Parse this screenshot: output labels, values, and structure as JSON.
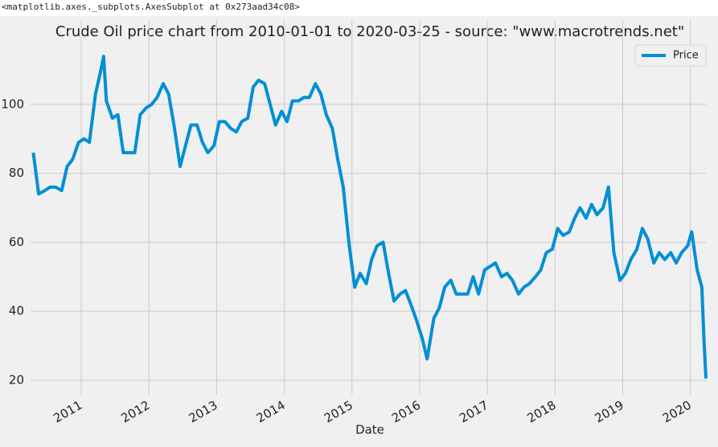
{
  "output_text": "<matplotlib.axes._subplots.AxesSubplot at 0x273aad34c08>",
  "chart_data": {
    "type": "line",
    "title": "Crude Oil price chart from 2010-01-01 to 2020-03-25 - source: \"www.macrotrends.net\"",
    "x_label": "Date",
    "x": [
      2010.29,
      2010.37,
      2010.46,
      2010.54,
      2010.62,
      2010.71,
      2010.79,
      2010.87,
      2010.96,
      2011.04,
      2011.12,
      2011.21,
      2011.29,
      2011.33,
      2011.37,
      2011.46,
      2011.54,
      2011.62,
      2011.71,
      2011.79,
      2011.87,
      2011.96,
      2012.04,
      2012.12,
      2012.21,
      2012.29,
      2012.37,
      2012.46,
      2012.54,
      2012.62,
      2012.71,
      2012.79,
      2012.87,
      2012.96,
      2013.04,
      2013.12,
      2013.21,
      2013.29,
      2013.37,
      2013.46,
      2013.54,
      2013.62,
      2013.71,
      2013.79,
      2013.87,
      2013.96,
      2014.04,
      2014.12,
      2014.21,
      2014.29,
      2014.37,
      2014.46,
      2014.54,
      2014.62,
      2014.71,
      2014.79,
      2014.87,
      2014.96,
      2015.04,
      2015.12,
      2015.21,
      2015.29,
      2015.37,
      2015.46,
      2015.54,
      2015.62,
      2015.71,
      2015.79,
      2015.87,
      2015.96,
      2016.04,
      2016.11,
      2016.21,
      2016.29,
      2016.37,
      2016.46,
      2016.54,
      2016.62,
      2016.71,
      2016.79,
      2016.87,
      2016.96,
      2017.04,
      2017.12,
      2017.21,
      2017.29,
      2017.37,
      2017.46,
      2017.54,
      2017.62,
      2017.71,
      2017.79,
      2017.87,
      2017.96,
      2018.04,
      2018.12,
      2018.21,
      2018.29,
      2018.37,
      2018.46,
      2018.54,
      2018.62,
      2018.71,
      2018.79,
      2018.87,
      2018.96,
      2019.04,
      2019.12,
      2019.21,
      2019.29,
      2019.37,
      2019.46,
      2019.54,
      2019.62,
      2019.71,
      2019.79,
      2019.87,
      2019.96,
      2020.02,
      2020.1,
      2020.17,
      2020.2,
      2020.23
    ],
    "series": [
      {
        "name": "Price",
        "color": "#008fd5",
        "values": [
          86,
          74,
          75,
          76,
          76,
          75,
          82,
          84,
          89,
          90,
          89,
          103,
          110,
          113.9,
          101,
          96,
          97,
          86,
          86,
          86,
          97,
          99,
          100,
          102,
          106,
          103,
          94,
          82,
          88,
          94,
          94,
          89,
          86,
          88,
          95,
          95,
          93,
          92,
          95,
          96,
          105,
          107,
          106,
          100,
          94,
          98,
          95,
          101,
          101,
          102,
          102,
          106,
          103,
          97,
          93,
          84,
          76,
          59,
          47,
          51,
          48,
          55,
          59,
          60,
          51,
          43,
          45,
          46,
          42,
          37,
          32,
          26.2,
          38,
          41,
          47,
          49,
          45,
          45,
          45,
          50,
          45,
          52,
          53,
          54,
          50,
          51,
          49,
          45,
          47,
          48,
          50,
          52,
          57,
          58,
          64,
          62,
          63,
          67,
          70,
          67,
          71,
          68,
          70,
          76,
          57,
          49,
          51,
          55,
          58,
          64,
          61,
          54,
          57,
          55,
          57,
          54,
          57,
          59,
          63,
          52,
          47,
          32,
          20.5
        ]
      }
    ],
    "xlim": [
      2010.25,
      2020.23
    ],
    "xticks": [
      2011,
      2012,
      2013,
      2014,
      2015,
      2016,
      2017,
      2018,
      2019,
      2020
    ],
    "ylim": [
      15.8,
      118.6
    ],
    "yticks": [
      20,
      40,
      60,
      80,
      100
    ],
    "grid": true,
    "legend": "upper right"
  }
}
